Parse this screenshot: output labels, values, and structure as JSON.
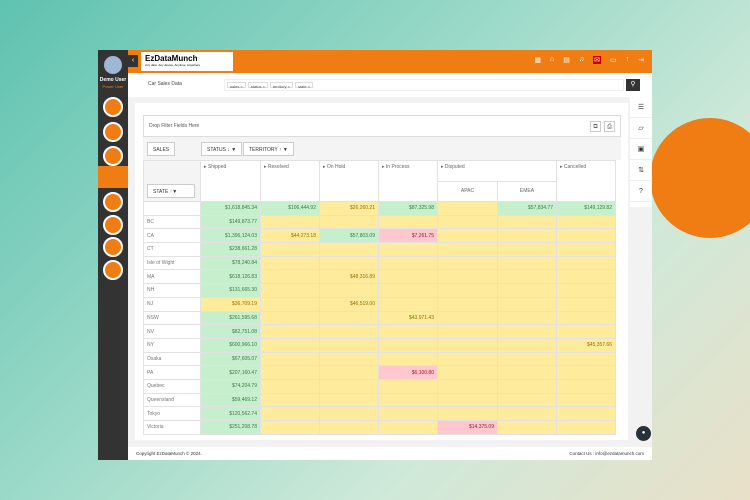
{
  "user": {
    "name": "Demo User",
    "role": "Power User"
  },
  "logo": {
    "name": "EzDataMunch",
    "tagline": "Any data, Any device, Anytime, Anywhere"
  },
  "header_icons": [
    "home-icon",
    "grid-icon",
    "bell-icon",
    "notification-icon",
    "video-icon",
    "upload-icon",
    "logout-icon"
  ],
  "notification_badge": "",
  "report_title": "Car Sales Data",
  "tags": [
    "sales",
    "status",
    "territory",
    "state"
  ],
  "drop_filter": "Drop Filter Fields Here",
  "pills": {
    "values": "SALES",
    "col1": "STATUS",
    "col2": "TERRITORY",
    "row": "STATE"
  },
  "columns": [
    "Shipped",
    "Resolved",
    "On Hold",
    "In Process",
    "Disputed",
    "Cancelled"
  ],
  "subcolumns": [
    "APAC",
    "EMEA"
  ],
  "colors": {
    "green": "#c6efce",
    "yellow": "#ffeb9c",
    "pink": "#ffc7ce",
    "accent": "#f07c14"
  },
  "grand_total": [
    [
      "$1,618,845.34",
      "g"
    ],
    [
      "$106,444.92",
      "g"
    ],
    [
      "$26,260.21",
      "y"
    ],
    [
      "$87,325.98",
      "g"
    ],
    [
      "",
      "y"
    ],
    [
      "$57,834.77",
      "g"
    ],
    [
      "$149,129.82",
      "g"
    ]
  ],
  "rows": [
    {
      "state": "BC",
      "cells": [
        [
          "$149,873.77",
          "g"
        ],
        [
          "",
          "y"
        ],
        [
          "",
          "y"
        ],
        [
          "",
          "y"
        ],
        [
          "",
          "y"
        ],
        [
          "",
          "y"
        ],
        [
          "",
          "y"
        ]
      ]
    },
    {
      "state": "CA",
      "cells": [
        [
          "$1,396,124.03",
          "g"
        ],
        [
          "$44,273.18",
          "y"
        ],
        [
          "$57,803.09",
          "g"
        ],
        [
          "$7,261.75",
          "p"
        ],
        [
          "",
          "y"
        ],
        [
          "",
          "y"
        ],
        [
          "",
          "y"
        ]
      ]
    },
    {
      "state": "CT",
      "cells": [
        [
          "$238,661.28",
          "g"
        ],
        [
          "",
          "y"
        ],
        [
          "",
          "y"
        ],
        [
          "",
          "y"
        ],
        [
          "",
          "y"
        ],
        [
          "",
          "y"
        ],
        [
          "",
          "y"
        ]
      ]
    },
    {
      "state": "Isle of Wight",
      "cells": [
        [
          "$78,240.84",
          "g"
        ],
        [
          "",
          "y"
        ],
        [
          "",
          "y"
        ],
        [
          "",
          "y"
        ],
        [
          "",
          "y"
        ],
        [
          "",
          "y"
        ],
        [
          "",
          "y"
        ]
      ]
    },
    {
      "state": "MA",
      "cells": [
        [
          "$618,126.83",
          "g"
        ],
        [
          "",
          "y"
        ],
        [
          "$48,316.89",
          "y"
        ],
        [
          "",
          "y"
        ],
        [
          "",
          "y"
        ],
        [
          "",
          "y"
        ],
        [
          "",
          "y"
        ]
      ]
    },
    {
      "state": "NH",
      "cells": [
        [
          "$131,665.30",
          "g"
        ],
        [
          "",
          "y"
        ],
        [
          "",
          "y"
        ],
        [
          "",
          "y"
        ],
        [
          "",
          "y"
        ],
        [
          "",
          "y"
        ],
        [
          "",
          "y"
        ]
      ]
    },
    {
      "state": "NJ",
      "cells": [
        [
          "$36,709.19",
          "y"
        ],
        [
          "",
          "y"
        ],
        [
          "$46,519.00",
          "y"
        ],
        [
          "",
          "y"
        ],
        [
          "",
          "y"
        ],
        [
          "",
          "y"
        ],
        [
          "",
          "y"
        ]
      ]
    },
    {
      "state": "NSW",
      "cells": [
        [
          "$261,595.68",
          "g"
        ],
        [
          "",
          "y"
        ],
        [
          "",
          "y"
        ],
        [
          "$43,971.43",
          "y"
        ],
        [
          "",
          "y"
        ],
        [
          "",
          "y"
        ],
        [
          "",
          "y"
        ]
      ]
    },
    {
      "state": "NV",
      "cells": [
        [
          "$82,751.08",
          "g"
        ],
        [
          "",
          "y"
        ],
        [
          "",
          "y"
        ],
        [
          "",
          "y"
        ],
        [
          "",
          "y"
        ],
        [
          "",
          "y"
        ],
        [
          "",
          "y"
        ]
      ]
    },
    {
      "state": "NY",
      "cells": [
        [
          "$600,966.10",
          "g"
        ],
        [
          "",
          "y"
        ],
        [
          "",
          "y"
        ],
        [
          "",
          "y"
        ],
        [
          "",
          "y"
        ],
        [
          "",
          "y"
        ],
        [
          "$45,357.66",
          "y"
        ]
      ]
    },
    {
      "state": "Osaka",
      "cells": [
        [
          "$67,605.07",
          "g"
        ],
        [
          "",
          "y"
        ],
        [
          "",
          "y"
        ],
        [
          "",
          "y"
        ],
        [
          "",
          "y"
        ],
        [
          "",
          "y"
        ],
        [
          "",
          "y"
        ]
      ]
    },
    {
      "state": "PA",
      "cells": [
        [
          "$207,160.47",
          "g"
        ],
        [
          "",
          "y"
        ],
        [
          "",
          "y"
        ],
        [
          "$6,100.80",
          "p"
        ],
        [
          "",
          "y"
        ],
        [
          "",
          "y"
        ],
        [
          "",
          "y"
        ]
      ]
    },
    {
      "state": "Quebec",
      "cells": [
        [
          "$74,204.79",
          "g"
        ],
        [
          "",
          "y"
        ],
        [
          "",
          "y"
        ],
        [
          "",
          "y"
        ],
        [
          "",
          "y"
        ],
        [
          "",
          "y"
        ],
        [
          "",
          "y"
        ]
      ]
    },
    {
      "state": "Queensland",
      "cells": [
        [
          "$59,469.12",
          "g"
        ],
        [
          "",
          "y"
        ],
        [
          "",
          "y"
        ],
        [
          "",
          "y"
        ],
        [
          "",
          "y"
        ],
        [
          "",
          "y"
        ],
        [
          "",
          "y"
        ]
      ]
    },
    {
      "state": "Tokyo",
      "cells": [
        [
          "$120,562.74",
          "g"
        ],
        [
          "",
          "y"
        ],
        [
          "",
          "y"
        ],
        [
          "",
          "y"
        ],
        [
          "",
          "y"
        ],
        [
          "",
          "y"
        ],
        [
          "",
          "y"
        ]
      ]
    },
    {
      "state": "Victoria",
      "cells": [
        [
          "$251,208.78",
          "g"
        ],
        [
          "",
          "y"
        ],
        [
          "",
          "y"
        ],
        [
          "",
          "y"
        ],
        [
          "$14,375.09",
          "p"
        ],
        [
          "",
          "y"
        ],
        [
          "",
          "y"
        ]
      ]
    }
  ],
  "footer": {
    "copyright": "Copyright EzDataMunch © 2024.",
    "contact_label": "Contact Us :",
    "email": "info@ezdatamunch.com"
  }
}
